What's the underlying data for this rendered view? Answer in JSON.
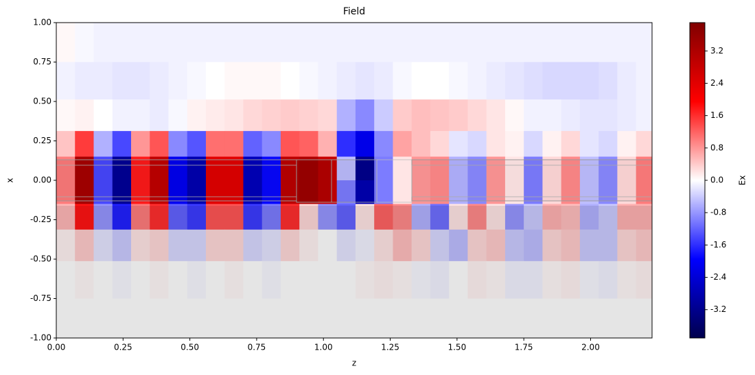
{
  "chart_data": {
    "type": "heatmap",
    "title": "Field",
    "xlabel": "z",
    "ylabel": "x",
    "colorbar_label": "Ex",
    "colormap": "seismic",
    "xlim": [
      0,
      2.23
    ],
    "ylim": [
      -1,
      1
    ],
    "zlim": [
      -3.9,
      3.9
    ],
    "xticks": [
      {
        "value": 0,
        "label": "0.00"
      },
      {
        "value": 0.25,
        "label": "0.25"
      },
      {
        "value": 0.5,
        "label": "0.50"
      },
      {
        "value": 0.75,
        "label": "0.75"
      },
      {
        "value": 1,
        "label": "1.00"
      },
      {
        "value": 1.25,
        "label": "1.25"
      },
      {
        "value": 1.5,
        "label": "1.50"
      },
      {
        "value": 1.75,
        "label": "1.75"
      },
      {
        "value": 2,
        "label": "2.00"
      }
    ],
    "yticks": [
      {
        "value": -1,
        "label": "-1.00"
      },
      {
        "value": -0.75,
        "label": "-0.75"
      },
      {
        "value": -0.5,
        "label": "-0.50"
      },
      {
        "value": -0.25,
        "label": "-0.25"
      },
      {
        "value": 0,
        "label": "0.00"
      },
      {
        "value": 0.25,
        "label": "0.25"
      },
      {
        "value": 0.5,
        "label": "0.50"
      },
      {
        "value": 0.75,
        "label": "0.75"
      },
      {
        "value": 1,
        "label": "1.00"
      }
    ],
    "cbticks": [
      -3.2,
      -2.4,
      -1.6,
      -0.8,
      {
        "value": 0,
        "label": "0.0"
      },
      0.8,
      1.6,
      2.4,
      3.2
    ],
    "x": [
      0.035,
      0.105,
      0.175,
      0.245,
      0.315,
      0.385,
      0.455,
      0.525,
      0.595,
      0.665,
      0.735,
      0.805,
      0.875,
      0.945,
      1.015,
      1.085,
      1.155,
      1.225,
      1.295,
      1.365,
      1.435,
      1.505,
      1.575,
      1.645,
      1.715,
      1.785,
      1.855,
      1.925,
      1.995,
      2.065,
      2.135,
      2.205
    ],
    "y": [
      0.875,
      0.625,
      0.4,
      0.225,
      0.075,
      -0.075,
      -0.225,
      -0.4,
      -0.625,
      -0.875
    ],
    "values": [
      [
        0.05,
        -0.05,
        -0.1,
        -0.1,
        -0.1,
        -0.1,
        -0.1,
        -0.1,
        -0.1,
        -0.1,
        -0.1,
        -0.1,
        -0.1,
        -0.1,
        -0.1,
        -0.1,
        -0.1,
        -0.1,
        -0.1,
        -0.1,
        -0.1,
        -0.1,
        -0.1,
        -0.1,
        -0.1,
        -0.1,
        -0.1,
        -0.1,
        -0.1,
        -0.1,
        -0.1,
        -0.1
      ],
      [
        -0.1,
        -0.15,
        -0.15,
        -0.2,
        -0.2,
        -0.15,
        -0.1,
        -0.05,
        0,
        0.05,
        0.05,
        0.05,
        0,
        -0.05,
        -0.1,
        -0.15,
        -0.2,
        -0.15,
        -0.05,
        0,
        0,
        -0.05,
        -0.1,
        -0.15,
        -0.2,
        -0.25,
        -0.3,
        -0.3,
        -0.3,
        -0.25,
        -0.15,
        -0.1
      ],
      [
        0.05,
        0.1,
        0,
        -0.1,
        -0.1,
        -0.15,
        -0.05,
        0.1,
        0.15,
        0.2,
        0.3,
        0.35,
        0.4,
        0.35,
        0.3,
        -0.6,
        -0.9,
        -0.4,
        0.4,
        0.5,
        0.45,
        0.4,
        0.3,
        0.2,
        0.05,
        -0.1,
        -0.1,
        -0.15,
        -0.2,
        -0.2,
        -0.15,
        -0.1
      ],
      [
        0.45,
        1.5,
        -0.6,
        -1.4,
        0.8,
        1.3,
        -0.9,
        -1.3,
        1.1,
        1.1,
        -1.2,
        -0.9,
        1.3,
        1.2,
        0.6,
        -1.6,
        -2.2,
        -0.9,
        0.7,
        0.5,
        0.3,
        -0.2,
        -0.3,
        0.2,
        0.1,
        -0.3,
        0.1,
        0.3,
        -0.2,
        -0.3,
        0.1,
        0.3
      ],
      [
        1.0,
        3.3,
        -1.4,
        -3.1,
        1.75,
        2.9,
        -2.1,
        -2.8,
        2.4,
        2.4,
        -2.7,
        -1.9,
        3.0,
        3.2,
        2.8,
        -0.5,
        -3.2,
        -1.0,
        0.2,
        0.8,
        0.9,
        -0.6,
        -0.9,
        0.8,
        0.2,
        -1.0,
        0.3,
        0.9,
        -0.5,
        -0.9,
        0.3,
        1.0
      ],
      [
        1.0,
        3.3,
        -1.4,
        -3.1,
        1.75,
        2.9,
        -2.1,
        -2.8,
        2.4,
        2.4,
        -2.7,
        -1.9,
        3.0,
        3.2,
        2.8,
        -1.0,
        -2.8,
        -1.0,
        0.2,
        0.8,
        0.9,
        -0.6,
        -0.9,
        0.8,
        0.2,
        -1.0,
        0.3,
        0.9,
        -0.5,
        -0.9,
        0.3,
        1.0
      ],
      [
        0.55,
        1.8,
        -0.8,
        -1.7,
        1.0,
        1.6,
        -1.2,
        -1.5,
        1.3,
        1.3,
        -1.5,
        -1.0,
        1.6,
        0.3,
        -0.8,
        -1.2,
        0.2,
        1.2,
        0.9,
        -0.6,
        -1.1,
        0.2,
        0.9,
        0.2,
        -0.8,
        -0.4,
        0.6,
        0.5,
        -0.6,
        -0.4,
        0.6,
        0.6
      ],
      [
        0.1,
        0.4,
        -0.2,
        -0.4,
        0.2,
        0.3,
        -0.3,
        -0.3,
        0.3,
        0.3,
        -0.3,
        -0.2,
        0.3,
        0.1,
        0.0,
        -0.2,
        -0.1,
        0.2,
        0.5,
        0.3,
        -0.3,
        -0.5,
        0.3,
        0.4,
        -0.4,
        -0.5,
        0.3,
        0.4,
        -0.4,
        -0.4,
        0.3,
        0.4
      ],
      [
        0,
        0.05,
        0,
        -0.05,
        0,
        0.05,
        0,
        -0.05,
        0,
        0.05,
        0,
        -0.05,
        0,
        0,
        0,
        0,
        0.05,
        0.1,
        0.05,
        -0.05,
        -0.1,
        0,
        0.1,
        0.05,
        -0.1,
        -0.1,
        0.05,
        0.1,
        -0.05,
        -0.1,
        0.05,
        0.1
      ],
      [
        0,
        0,
        0,
        0,
        0,
        0,
        0,
        0,
        0,
        0,
        0,
        0,
        0,
        0,
        0,
        0,
        0,
        0,
        0,
        0,
        0,
        0,
        0,
        0,
        0,
        0,
        0,
        0,
        0,
        0,
        0,
        0
      ]
    ]
  }
}
